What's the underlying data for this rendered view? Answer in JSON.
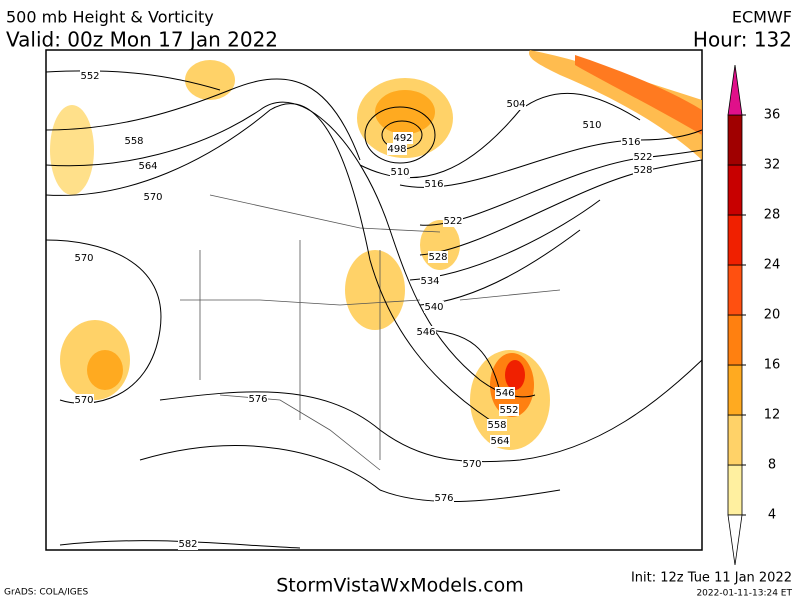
{
  "header": {
    "title": "500 mb Height & Vorticity",
    "valid": "Valid: 00z Mon 17 Jan 2022",
    "model": "ECMWF",
    "hour": "Hour: 132"
  },
  "contour_labels": [
    552,
    558,
    564,
    570,
    570,
    570,
    576,
    582,
    492,
    498,
    504,
    510,
    516,
    522,
    528,
    534,
    540,
    546,
    510,
    516,
    522,
    528,
    546,
    552,
    558,
    564,
    570,
    576
  ],
  "colorbar": {
    "ticks": [
      4,
      8,
      12,
      16,
      20,
      24,
      28,
      32,
      36
    ],
    "colors": [
      "#fff0a0",
      "#ffd268",
      "#ffaa20",
      "#ff8010",
      "#ff5010",
      "#f02000",
      "#c80000",
      "#a00000"
    ],
    "over_color": "#e0108a"
  },
  "footer": {
    "software": "GrADS: COLA/IGES",
    "site": "StormVistaWxModels.com",
    "init": "Init: 12z Tue 11 Jan 2022",
    "timestamp": "2022-01-11-13:24 ET"
  }
}
